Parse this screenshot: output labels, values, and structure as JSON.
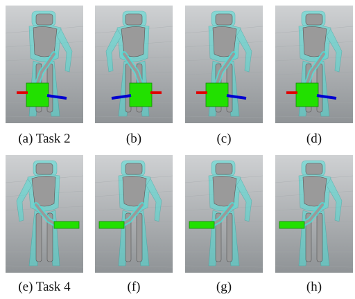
{
  "figure": {
    "panels": [
      {
        "id": "a",
        "caption": "(a) Task 2",
        "task": "box-reach",
        "view": "front",
        "object": "box"
      },
      {
        "id": "b",
        "caption": "(b)",
        "task": "box-reach",
        "view": "side",
        "object": "box"
      },
      {
        "id": "c",
        "caption": "(c)",
        "task": "box-reach",
        "view": "three-quarter",
        "object": "box"
      },
      {
        "id": "d",
        "caption": "(d)",
        "task": "box-reach",
        "view": "three-quarter",
        "object": "box"
      },
      {
        "id": "e",
        "caption": "(e) Task 4",
        "task": "plate-reach",
        "view": "side",
        "object": "plate"
      },
      {
        "id": "f",
        "caption": "(f)",
        "task": "plate-reach",
        "view": "three-quarter",
        "object": "plate"
      },
      {
        "id": "g",
        "caption": "(g)",
        "task": "plate-reach",
        "view": "three-quarter",
        "object": "plate"
      },
      {
        "id": "h",
        "caption": "(h)",
        "task": "plate-reach",
        "view": "back",
        "object": "plate"
      }
    ],
    "colors": {
      "background_top": "#cfd1d3",
      "background_bottom": "#8f9396",
      "robot_body": "#9a9a9a",
      "robot_overlay": "#4fe0d8",
      "object": "#22e000",
      "axis_red": "#e00000",
      "axis_blue": "#0000d0"
    }
  }
}
